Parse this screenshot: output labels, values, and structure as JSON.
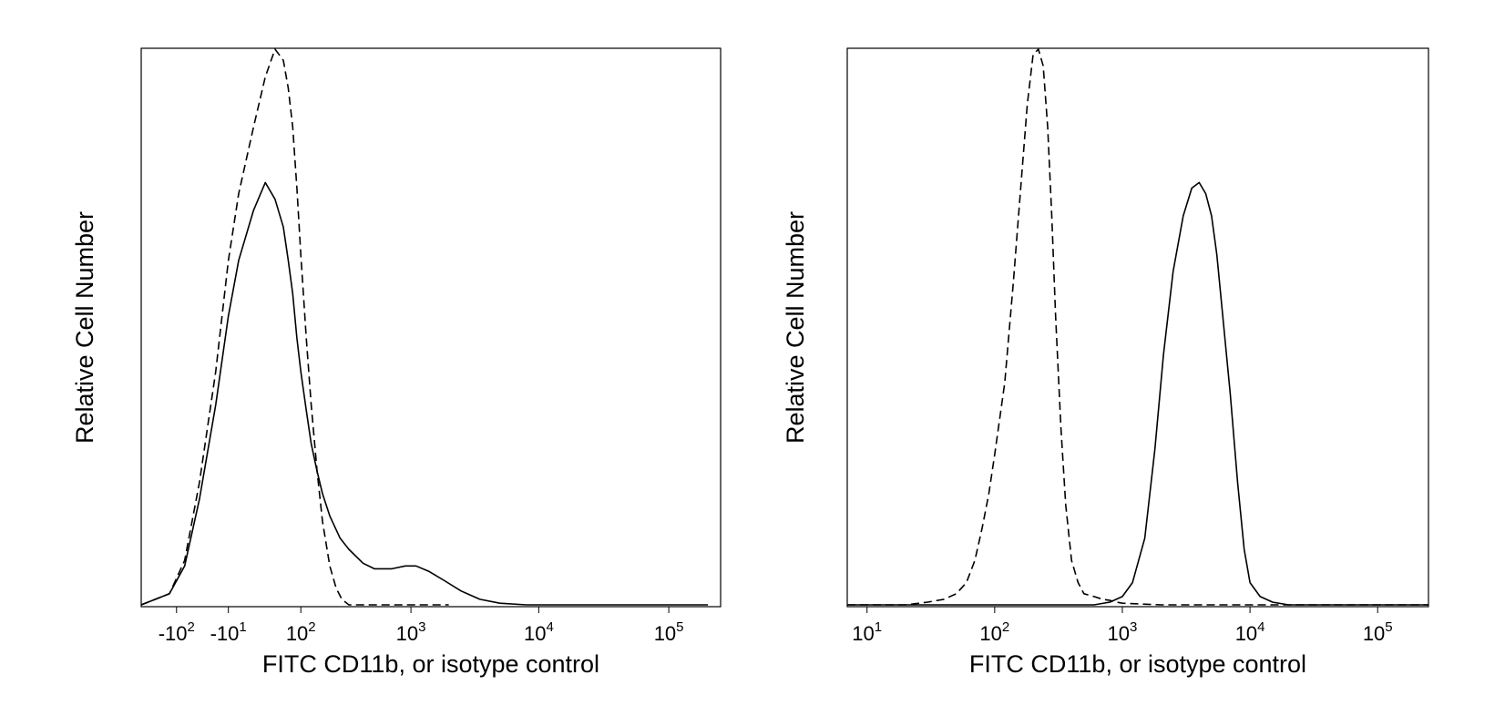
{
  "chart_data": [
    {
      "type": "line",
      "title": "",
      "xlabel": "FITC CD11b, or isotype control",
      "ylabel": "Relative Cell Number",
      "x_scale": "logicle",
      "x_ticks": [
        {
          "value": -100,
          "base": "-10",
          "exp": "2"
        },
        {
          "value": -10,
          "base": "-10",
          "exp": "1"
        },
        {
          "value": 100,
          "base": "10",
          "exp": "2"
        },
        {
          "value": 1000,
          "base": "10",
          "exp": "3"
        },
        {
          "value": 10000,
          "base": "10",
          "exp": "4"
        },
        {
          "value": 100000,
          "base": "10",
          "exp": "5"
        }
      ],
      "ylim": [
        0,
        1
      ],
      "grid": false,
      "legend": "none",
      "series": [
        {
          "style": "dashed",
          "x": [
            -230,
            -120,
            -80,
            -50,
            -25,
            -10,
            0,
            15,
            30,
            45,
            60,
            70,
            80,
            90,
            100,
            115,
            130,
            150,
            170,
            200,
            230,
            260,
            300,
            400,
            600,
            1000,
            2000
          ],
          "y": [
            0.0,
            0.02,
            0.08,
            0.22,
            0.42,
            0.62,
            0.74,
            0.86,
            0.95,
            1.0,
            0.98,
            0.93,
            0.86,
            0.75,
            0.63,
            0.48,
            0.36,
            0.24,
            0.15,
            0.07,
            0.03,
            0.01,
            0.0,
            0.0,
            0.0,
            0.0,
            0.0
          ]
        },
        {
          "style": "solid",
          "x": [
            -230,
            -120,
            -80,
            -50,
            -25,
            -10,
            0,
            15,
            30,
            45,
            60,
            70,
            80,
            90,
            100,
            115,
            130,
            150,
            170,
            200,
            250,
            300,
            400,
            500,
            700,
            900,
            1100,
            1400,
            1800,
            2500,
            3500,
            5000,
            8000,
            20000,
            200000
          ],
          "y": [
            0.0,
            0.02,
            0.07,
            0.19,
            0.36,
            0.52,
            0.62,
            0.71,
            0.76,
            0.73,
            0.68,
            0.62,
            0.56,
            0.48,
            0.42,
            0.35,
            0.29,
            0.24,
            0.2,
            0.16,
            0.12,
            0.1,
            0.075,
            0.065,
            0.065,
            0.07,
            0.07,
            0.06,
            0.045,
            0.025,
            0.01,
            0.003,
            0.0,
            0.0,
            0.0
          ]
        }
      ]
    },
    {
      "type": "line",
      "title": "",
      "xlabel": "FITC CD11b, or isotype control",
      "ylabel": "Relative Cell Number",
      "x_scale": "log",
      "x_ticks": [
        {
          "value": 10,
          "base": "10",
          "exp": "1"
        },
        {
          "value": 100,
          "base": "10",
          "exp": "2"
        },
        {
          "value": 1000,
          "base": "10",
          "exp": "3"
        },
        {
          "value": 10000,
          "base": "10",
          "exp": "4"
        },
        {
          "value": 100000,
          "base": "10",
          "exp": "5"
        }
      ],
      "ylim": [
        0,
        1
      ],
      "grid": false,
      "legend": "none",
      "series": [
        {
          "style": "dashed",
          "x": [
            7,
            20,
            30,
            40,
            50,
            60,
            70,
            80,
            90,
            100,
            120,
            140,
            160,
            180,
            200,
            220,
            240,
            260,
            280,
            300,
            330,
            360,
            400,
            450,
            500,
            600,
            700,
            800,
            900,
            1000,
            2000,
            10000,
            300000
          ],
          "y": [
            0.0,
            0.0,
            0.005,
            0.01,
            0.02,
            0.04,
            0.08,
            0.14,
            0.2,
            0.27,
            0.4,
            0.58,
            0.75,
            0.9,
            0.99,
            1.0,
            0.97,
            0.86,
            0.7,
            0.52,
            0.32,
            0.18,
            0.08,
            0.04,
            0.02,
            0.015,
            0.01,
            0.008,
            0.005,
            0.003,
            0.0,
            0.0,
            0.0
          ]
        },
        {
          "style": "solid",
          "x": [
            7,
            600,
            800,
            1000,
            1200,
            1500,
            1800,
            2100,
            2500,
            3000,
            3500,
            4000,
            4500,
            5000,
            5500,
            6000,
            7000,
            8000,
            9000,
            10000,
            12000,
            15000,
            20000,
            300000
          ],
          "y": [
            0.0,
            0.0,
            0.005,
            0.015,
            0.04,
            0.12,
            0.28,
            0.45,
            0.6,
            0.7,
            0.75,
            0.76,
            0.74,
            0.7,
            0.63,
            0.54,
            0.38,
            0.22,
            0.1,
            0.04,
            0.015,
            0.005,
            0.0,
            0.0
          ]
        }
      ]
    }
  ]
}
